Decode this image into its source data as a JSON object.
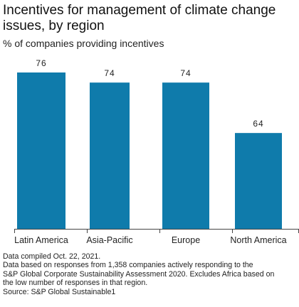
{
  "title": "Incentives for management of climate change issues, by region",
  "subtitle": "% of companies providing incentives",
  "colors": {
    "bar": "#0f7bab",
    "axis": "#444444",
    "text": "#222222"
  },
  "chart_data": {
    "type": "bar",
    "title": "Incentives for management of climate change issues, by region",
    "subtitle": "% of companies providing incentives",
    "categories": [
      "Latin America",
      "Asia-Pacific",
      "Europe",
      "North America"
    ],
    "values": [
      76,
      74,
      74,
      64
    ],
    "ylim": [
      45,
      76
    ],
    "grid": false,
    "legend": "none"
  },
  "footnotes": [
    "Data compiled Oct. 22, 2021.",
    "Data based on responses from 1,358 companies actively responding to the",
    "S&P Global Corporate Sustainability Assessment 2020. Excludes Africa based on",
    "the low number of responses in that region.",
    "Source: S&P Global Sustainable1"
  ]
}
